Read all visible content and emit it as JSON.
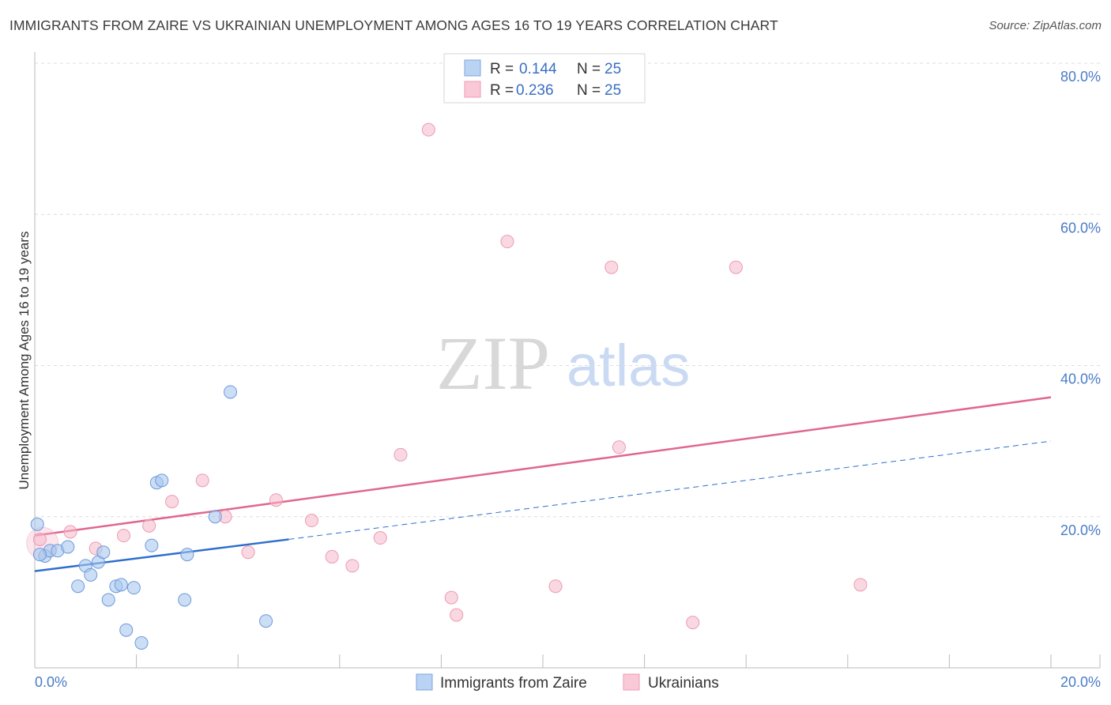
{
  "title": "IMMIGRANTS FROM ZAIRE VS UKRAINIAN UNEMPLOYMENT AMONG AGES 16 TO 19 YEARS CORRELATION CHART",
  "source": "Source: ZipAtlas.com",
  "watermark": {
    "zip": "ZIP",
    "atlas": "atlas"
  },
  "legend": {
    "rows": [
      {
        "r_label": "R = ",
        "r_value": "0.144",
        "n_label": "N = ",
        "n_value": "25"
      },
      {
        "r_label": "R = ",
        "r_value": "0.236",
        "n_label": "N = ",
        "n_value": "25"
      }
    ]
  },
  "chart_data": {
    "type": "scatter",
    "title": "IMMIGRANTS FROM ZAIRE VS UKRAINIAN UNEMPLOYMENT AMONG AGES 16 TO 19 YEARS CORRELATION CHART",
    "xlabel": "",
    "ylabel": "Unemployment Among Ages 16 to 19 years",
    "xlim": [
      0,
      20
    ],
    "ylim": [
      0,
      80
    ],
    "x_tick_labels": [
      "0.0%",
      "20.0%"
    ],
    "y_ticks": [
      20,
      40,
      60,
      80
    ],
    "y_tick_labels": [
      "20.0%",
      "40.0%",
      "60.0%",
      "80.0%"
    ],
    "grid": true,
    "legend_position": "top-center",
    "colors": {
      "zaire": "#a9c8ef",
      "zaire_line": "#2f6fcc",
      "ukr": "#f6b8cb",
      "ukr_line": "#e0678f"
    },
    "series": [
      {
        "name": "Immigrants from Zaire",
        "points": [
          [
            0.05,
            19.0
          ],
          [
            0.2,
            14.8
          ],
          [
            0.3,
            15.5
          ],
          [
            0.45,
            15.5
          ],
          [
            0.65,
            16.0
          ],
          [
            0.85,
            10.8
          ],
          [
            1.0,
            13.5
          ],
          [
            1.1,
            12.3
          ],
          [
            1.25,
            14.0
          ],
          [
            1.35,
            15.3
          ],
          [
            1.45,
            9.0
          ],
          [
            1.6,
            10.8
          ],
          [
            1.7,
            11.0
          ],
          [
            1.8,
            5.0
          ],
          [
            1.95,
            10.6
          ],
          [
            2.1,
            3.3
          ],
          [
            2.3,
            16.2
          ],
          [
            2.4,
            24.5
          ],
          [
            2.5,
            24.8
          ],
          [
            2.95,
            9.0
          ],
          [
            3.0,
            15.0
          ],
          [
            3.55,
            20.0
          ],
          [
            3.85,
            36.5
          ],
          [
            4.55,
            6.2
          ],
          [
            0.1,
            15.0
          ]
        ],
        "trend": {
          "x": [
            0,
            5.0
          ],
          "y": [
            12.8,
            17.0
          ],
          "extended_to": [
            20,
            30.0
          ]
        }
      },
      {
        "name": "Ukrainians",
        "points": [
          [
            0.1,
            17.0
          ],
          [
            0.7,
            18.0
          ],
          [
            1.2,
            15.8
          ],
          [
            1.75,
            17.5
          ],
          [
            2.25,
            18.8
          ],
          [
            2.7,
            22.0
          ],
          [
            3.3,
            24.8
          ],
          [
            3.75,
            20.0
          ],
          [
            4.2,
            15.3
          ],
          [
            4.75,
            22.2
          ],
          [
            5.45,
            19.5
          ],
          [
            5.85,
            14.7
          ],
          [
            6.25,
            13.5
          ],
          [
            6.8,
            17.2
          ],
          [
            7.2,
            28.2
          ],
          [
            7.75,
            71.2
          ],
          [
            8.2,
            9.3
          ],
          [
            8.3,
            7.0
          ],
          [
            9.3,
            56.4
          ],
          [
            10.25,
            10.8
          ],
          [
            11.35,
            53.0
          ],
          [
            11.5,
            29.2
          ],
          [
            12.95,
            6.0
          ],
          [
            13.8,
            53.0
          ],
          [
            16.25,
            11.0
          ]
        ],
        "trend": {
          "x": [
            0,
            20
          ],
          "y": [
            17.5,
            35.8
          ]
        }
      }
    ]
  },
  "bottom_legend": [
    "Immigrants from Zaire",
    "Ukrainians"
  ]
}
